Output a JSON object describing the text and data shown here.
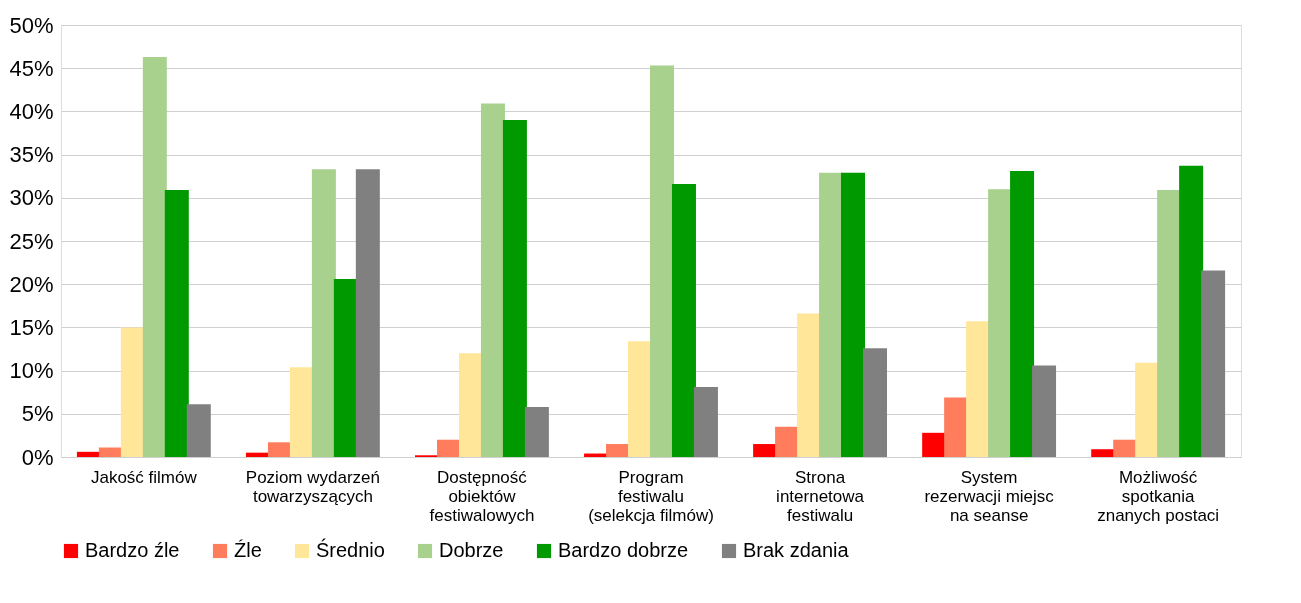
{
  "chart_data": {
    "type": "bar",
    "categories": [
      "Jakość filmów",
      "Poziom wydarzeń\ntowarzyszących",
      "Dostępność\nobiektów\nfestiwalowych",
      "Program\nfestiwalu\n(selekcja filmów)",
      "Strona\ninternetowa\nfestiwalu",
      "System\nrezerwacji miejsc\nna seanse",
      "Możliwość\nspotkania\nznanych postaci"
    ],
    "series": [
      {
        "name": "Bardzo źle",
        "color": "#ff0000",
        "values": [
          0.6,
          0.5,
          0.2,
          0.4,
          1.5,
          2.8,
          0.9
        ]
      },
      {
        "name": "Źle",
        "color": "#ff7c5c",
        "values": [
          1.1,
          1.7,
          2.0,
          1.5,
          3.5,
          6.9,
          2.0
        ]
      },
      {
        "name": "Średnio",
        "color": "#ffe699",
        "values": [
          15.0,
          10.4,
          12.0,
          13.4,
          16.6,
          15.7,
          10.9
        ]
      },
      {
        "name": "Dobrze",
        "color": "#a9d18e",
        "values": [
          46.3,
          33.3,
          40.9,
          45.3,
          32.9,
          31.0,
          30.9
        ]
      },
      {
        "name": "Bardzo dobrze",
        "color": "#009900",
        "values": [
          30.9,
          20.6,
          39.0,
          31.6,
          32.9,
          33.1,
          33.7
        ]
      },
      {
        "name": "Brak zdania",
        "color": "#808080",
        "values": [
          6.1,
          33.3,
          5.8,
          8.1,
          12.6,
          10.6,
          21.6
        ]
      }
    ],
    "ylim": [
      0,
      50
    ],
    "yticks": [
      {
        "value": 0,
        "label": "0%"
      },
      {
        "value": 5,
        "label": "5%"
      },
      {
        "value": 10,
        "label": "10%"
      },
      {
        "value": 15,
        "label": "15%"
      },
      {
        "value": 20,
        "label": "20%"
      },
      {
        "value": 25,
        "label": "25%"
      },
      {
        "value": 30,
        "label": "30%"
      },
      {
        "value": 35,
        "label": "35%"
      },
      {
        "value": 40,
        "label": "40%"
      },
      {
        "value": 45,
        "label": "45%"
      },
      {
        "value": 50,
        "label": "50%"
      }
    ],
    "grid": "y",
    "legend": "bottom"
  }
}
